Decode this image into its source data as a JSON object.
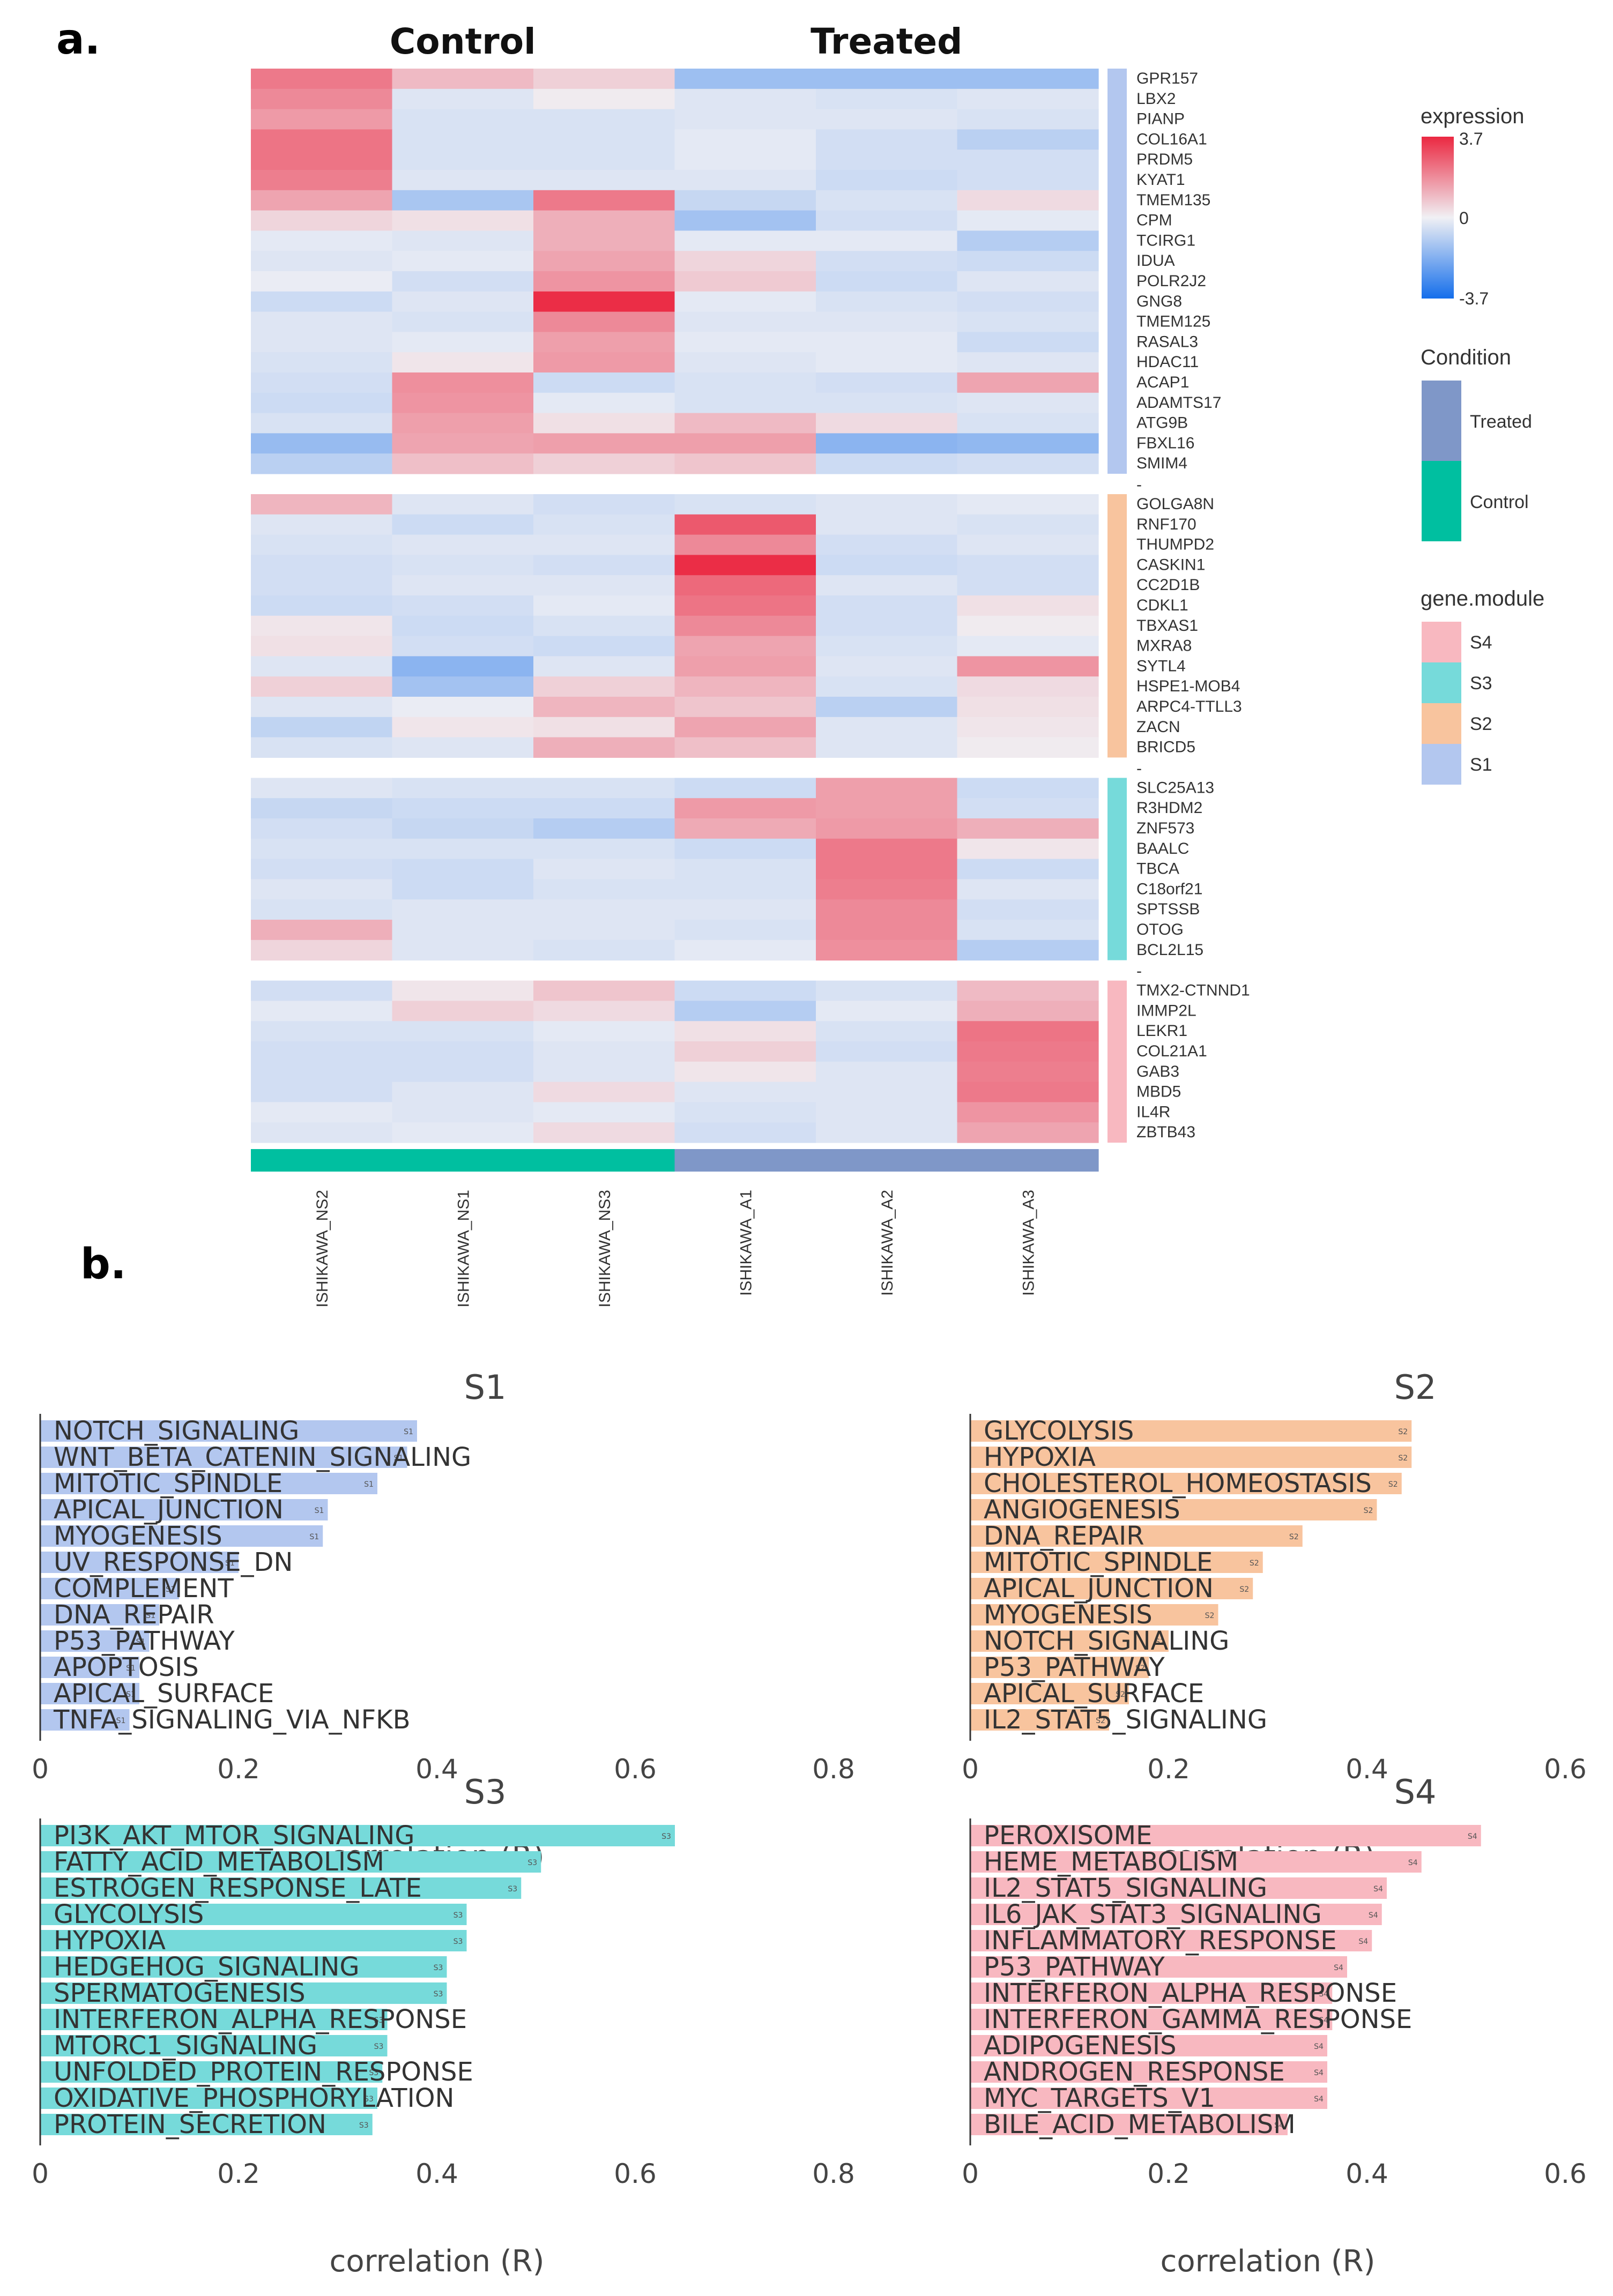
{
  "figure": {
    "panel_a_label": "a.",
    "panel_b_label": "b."
  },
  "chart_data": [
    {
      "type": "heatmap",
      "column_groups": [
        {
          "name": "Control",
          "color": "#00BFA0"
        },
        {
          "name": "Treated",
          "color": "#7F97C8"
        }
      ],
      "columns": [
        "ISHIKAWA_NS2",
        "ISHIKAWA_NS1",
        "ISHIKAWA_NS3",
        "ISHIKAWA_A1",
        "ISHIKAWA_A2",
        "ISHIKAWA_A3"
      ],
      "column_condition": [
        "Control",
        "Control",
        "Control",
        "Treated",
        "Treated",
        "Treated"
      ],
      "legend": {
        "expression_title": "expression",
        "expression_max": "3.7",
        "expression_mid": "0",
        "expression_min": "-3.7",
        "condition_title": "Condition",
        "condition_items": [
          {
            "name": "Treated",
            "color": "#7F97C8"
          },
          {
            "name": "Control",
            "color": "#00BFA0"
          }
        ],
        "module_title": "gene.module",
        "module_items": [
          {
            "name": "S4",
            "color": "#F8B8C0"
          },
          {
            "name": "S3",
            "color": "#76DADA"
          },
          {
            "name": "S2",
            "color": "#F8C49E"
          },
          {
            "name": "S1",
            "color": "#B3C7EF"
          }
        ]
      },
      "range": [
        -3.7,
        3.7
      ],
      "modules": [
        {
          "name": "S1",
          "color": "#B3C7EF",
          "genes": [
            "GPR157",
            "LBX2",
            "PIANP",
            "COL16A1",
            "PRDM5",
            "KYAT1",
            "TMEM135",
            "CPM",
            "TCIRG1",
            "IDUA",
            "POLR2J2",
            "GNG8",
            "TMEM125",
            "RASAL3",
            "HDAC11",
            "ACAP1",
            "ADAMTS17",
            "ATG9B",
            "FBXL16",
            "SMIM4"
          ],
          "values": [
            [
              2.2,
              1.0,
              0.6,
              -1.4,
              -1.4,
              -1.4
            ],
            [
              1.9,
              -0.3,
              0.1,
              -0.3,
              -0.4,
              -0.3
            ],
            [
              1.6,
              -0.4,
              -0.4,
              -0.3,
              -0.3,
              -0.4
            ],
            [
              2.3,
              -0.4,
              -0.4,
              -0.2,
              -0.5,
              -0.9
            ],
            [
              2.3,
              -0.4,
              -0.4,
              -0.2,
              -0.5,
              -0.5
            ],
            [
              2.1,
              -0.3,
              -0.3,
              -0.3,
              -0.6,
              -0.5
            ],
            [
              1.4,
              -1.2,
              2.2,
              -0.7,
              -0.4,
              0.4
            ],
            [
              0.5,
              0.3,
              1.2,
              -1.3,
              -0.5,
              -0.2
            ],
            [
              -0.2,
              -0.3,
              1.2,
              -0.2,
              -0.2,
              -1.0
            ],
            [
              -0.3,
              -0.2,
              1.4,
              0.5,
              -0.5,
              -0.6
            ],
            [
              -0.1,
              -0.5,
              1.7,
              0.7,
              -0.6,
              -0.3
            ],
            [
              -0.6,
              -0.3,
              3.6,
              -0.2,
              -0.4,
              -0.5
            ],
            [
              -0.3,
              -0.4,
              1.9,
              -0.3,
              -0.3,
              -0.4
            ],
            [
              -0.3,
              -0.2,
              1.5,
              -0.2,
              -0.2,
              -0.6
            ],
            [
              -0.4,
              0.2,
              1.6,
              -0.3,
              -0.2,
              -0.3
            ],
            [
              -0.5,
              1.8,
              -0.6,
              -0.4,
              -0.5,
              1.4
            ],
            [
              -0.6,
              1.7,
              -0.2,
              -0.4,
              -0.4,
              -0.3
            ],
            [
              -0.4,
              1.5,
              0.3,
              1.0,
              0.4,
              -0.4
            ],
            [
              -1.5,
              1.4,
              1.5,
              1.5,
              -1.7,
              -1.6
            ],
            [
              -0.9,
              0.9,
              0.6,
              0.8,
              -0.6,
              -0.5
            ]
          ]
        },
        {
          "name": "S2",
          "color": "#F8C49E",
          "genes": [
            "GOLGA8N",
            "RNF170",
            "THUMPD2",
            "CASKIN1",
            "CC2D1B",
            "CDKL1",
            "TBXAS1",
            "MXRA8",
            "SYTL4",
            "HSPE1-MOB4",
            "ARPC4-TTLL3",
            "ZACN",
            "BRICD5"
          ],
          "values": [
            [
              1.1,
              -0.3,
              -0.5,
              -0.4,
              -0.3,
              -0.2
            ],
            [
              -0.3,
              -0.6,
              -0.4,
              2.8,
              -0.3,
              -0.4
            ],
            [
              -0.4,
              -0.3,
              -0.3,
              1.9,
              -0.5,
              -0.3
            ],
            [
              -0.5,
              -0.4,
              -0.5,
              3.6,
              -0.6,
              -0.5
            ],
            [
              -0.5,
              -0.3,
              -0.3,
              2.5,
              -0.3,
              -0.5
            ],
            [
              -0.6,
              -0.5,
              -0.2,
              2.3,
              -0.5,
              0.3
            ],
            [
              0.2,
              -0.6,
              -0.4,
              1.9,
              -0.5,
              0.1
            ],
            [
              0.3,
              -0.5,
              -0.6,
              1.4,
              -0.4,
              -0.2
            ],
            [
              -0.3,
              -1.7,
              -0.3,
              1.5,
              -0.3,
              1.7
            ],
            [
              0.6,
              -1.3,
              0.6,
              1.1,
              -0.4,
              0.4
            ],
            [
              -0.3,
              -0.1,
              1.1,
              0.8,
              -0.9,
              0.3
            ],
            [
              -0.8,
              0.2,
              0.3,
              1.4,
              -0.3,
              0.2
            ],
            [
              -0.4,
              -0.3,
              1.2,
              0.9,
              -0.3,
              0.1
            ]
          ]
        },
        {
          "name": "S3",
          "color": "#76DADA",
          "genes": [
            "SLC25A13",
            "R3HDM2",
            "ZNF573",
            "BAALC",
            "TBCA",
            "C18orf21",
            "SPTSSB",
            "OTOG",
            "BCL2L15"
          ],
          "values": [
            [
              -0.3,
              -0.4,
              -0.4,
              -0.6,
              1.5,
              -0.6
            ],
            [
              -0.7,
              -0.6,
              -0.6,
              1.6,
              1.5,
              -0.5
            ],
            [
              -0.5,
              -0.7,
              -1.0,
              1.3,
              1.6,
              1.2
            ],
            [
              -0.4,
              -0.4,
              -0.4,
              -0.6,
              2.2,
              0.2
            ],
            [
              -0.5,
              -0.6,
              -0.3,
              -0.4,
              2.2,
              -0.6
            ],
            [
              -0.3,
              -0.6,
              -0.4,
              -0.4,
              2.1,
              -0.3
            ],
            [
              -0.4,
              -0.3,
              -0.3,
              -0.3,
              1.9,
              -0.5
            ],
            [
              1.2,
              -0.3,
              -0.3,
              -0.4,
              1.9,
              -0.4
            ],
            [
              0.5,
              -0.3,
              -0.4,
              -0.2,
              1.8,
              -1.0
            ]
          ]
        },
        {
          "name": "S4",
          "color": "#F8B8C0",
          "genes": [
            "TMX2-CTNND1",
            "IMMP2L",
            "LEKR1",
            "COL21A1",
            "GAB3",
            "MBD5",
            "IL4R",
            "ZBTB43"
          ],
          "values": [
            [
              -0.5,
              0.2,
              0.8,
              -0.6,
              -0.4,
              1.0
            ],
            [
              -0.2,
              0.6,
              0.4,
              -1.0,
              -0.2,
              1.2
            ],
            [
              -0.4,
              -0.4,
              -0.2,
              0.3,
              -0.4,
              2.3
            ],
            [
              -0.5,
              -0.5,
              -0.3,
              0.6,
              -0.5,
              2.2
            ],
            [
              -0.5,
              -0.5,
              -0.3,
              0.2,
              -0.3,
              2.1
            ],
            [
              -0.5,
              -0.3,
              0.4,
              -0.3,
              -0.3,
              2.2
            ],
            [
              -0.2,
              -0.3,
              -0.2,
              -0.4,
              -0.3,
              1.7
            ],
            [
              -0.3,
              -0.2,
              0.4,
              -0.5,
              -0.3,
              1.4
            ]
          ]
        }
      ]
    },
    {
      "type": "bar",
      "orientation": "horizontal",
      "title": "S1",
      "color": "#B3C7EF",
      "bar_tag": "S1",
      "categories": [
        "NOTCH_SIGNALING",
        "WNT_BETA_CATENIN_SIGNALING",
        "MITOTIC_SPINDLE",
        "APICAL_JUNCTION",
        "MYOGENESIS",
        "UV_RESPONSE_DN",
        "COMPLEMENT",
        "DNA_REPAIR",
        "P53_PATHWAY",
        "APOPTOSIS",
        "APICAL_SURFACE",
        "TNFA_SIGNALING_VIA_NFKB"
      ],
      "values": [
        0.38,
        0.37,
        0.34,
        0.29,
        0.285,
        0.2,
        0.14,
        0.12,
        0.11,
        0.1,
        0.1,
        0.09
      ],
      "xlim": [
        0,
        0.8
      ],
      "xticks": [
        "0",
        "0.2",
        "0.4",
        "0.6",
        "0.8"
      ],
      "xlabel": "correlation (R)"
    },
    {
      "type": "bar",
      "orientation": "horizontal",
      "title": "S2",
      "color": "#F8C49E",
      "bar_tag": "S2",
      "categories": [
        "GLYCOLYSIS",
        "HYPOXIA",
        "CHOLESTEROL_HOMEOSTASIS",
        "ANGIOGENESIS",
        "DNA_REPAIR",
        "MITOTIC_SPINDLE",
        "APICAL_JUNCTION",
        "MYOGENESIS",
        "NOTCH_SIGNALING",
        "P53_PATHWAY",
        "APICAL_SURFACE",
        "IL2_STAT5_SIGNALING"
      ],
      "values": [
        0.445,
        0.445,
        0.435,
        0.41,
        0.335,
        0.295,
        0.285,
        0.25,
        0.2,
        0.18,
        0.16,
        0.14
      ],
      "xlim": [
        0,
        0.6
      ],
      "xticks": [
        "0",
        "0.2",
        "0.4",
        "0.6"
      ],
      "xlabel": "correlation (R)"
    },
    {
      "type": "bar",
      "orientation": "horizontal",
      "title": "S3",
      "color": "#76DADA",
      "bar_tag": "S3",
      "categories": [
        "PI3K_AKT_MTOR_SIGNALING",
        "FATTY_ACID_METABOLISM",
        "ESTROGEN_RESPONSE_LATE",
        "GLYCOLYSIS",
        "HYPOXIA",
        "HEDGEHOG_SIGNALING",
        "SPERMATOGENESIS",
        "INTERFERON_ALPHA_RESPONSE",
        "MTORC1_SIGNALING",
        "UNFOLDED_PROTEIN_RESPONSE",
        "OXIDATIVE_PHOSPHORYLATION",
        "PROTEIN_SECRETION"
      ],
      "values": [
        0.64,
        0.505,
        0.485,
        0.43,
        0.43,
        0.41,
        0.41,
        0.35,
        0.35,
        0.345,
        0.34,
        0.335
      ],
      "xlim": [
        0,
        0.8
      ],
      "xticks": [
        "0",
        "0.2",
        "0.4",
        "0.6",
        "0.8"
      ],
      "xlabel": "correlation (R)"
    },
    {
      "type": "bar",
      "orientation": "horizontal",
      "title": "S4",
      "color": "#F8B8C0",
      "bar_tag": "S4",
      "categories": [
        "PEROXISOME",
        "HEME_METABOLISM",
        "IL2_STAT5_SIGNALING",
        "IL6_JAK_STAT3_SIGNALING",
        "INFLAMMATORY_RESPONSE",
        "P53_PATHWAY",
        "INTERFERON_ALPHA_RESPONSE",
        "INTERFERON_GAMMA_RESPONSE",
        "ADIPOGENESIS",
        "ANDROGEN_RESPONSE",
        "MYC_TARGETS_V1",
        "BILE_ACID_METABOLISM"
      ],
      "values": [
        0.515,
        0.455,
        0.42,
        0.415,
        0.405,
        0.38,
        0.365,
        0.365,
        0.36,
        0.36,
        0.36,
        0.32
      ],
      "xlim": [
        0,
        0.6
      ],
      "xticks": [
        "0",
        "0.2",
        "0.4",
        "0.6"
      ],
      "xlabel": "correlation (R)"
    }
  ]
}
